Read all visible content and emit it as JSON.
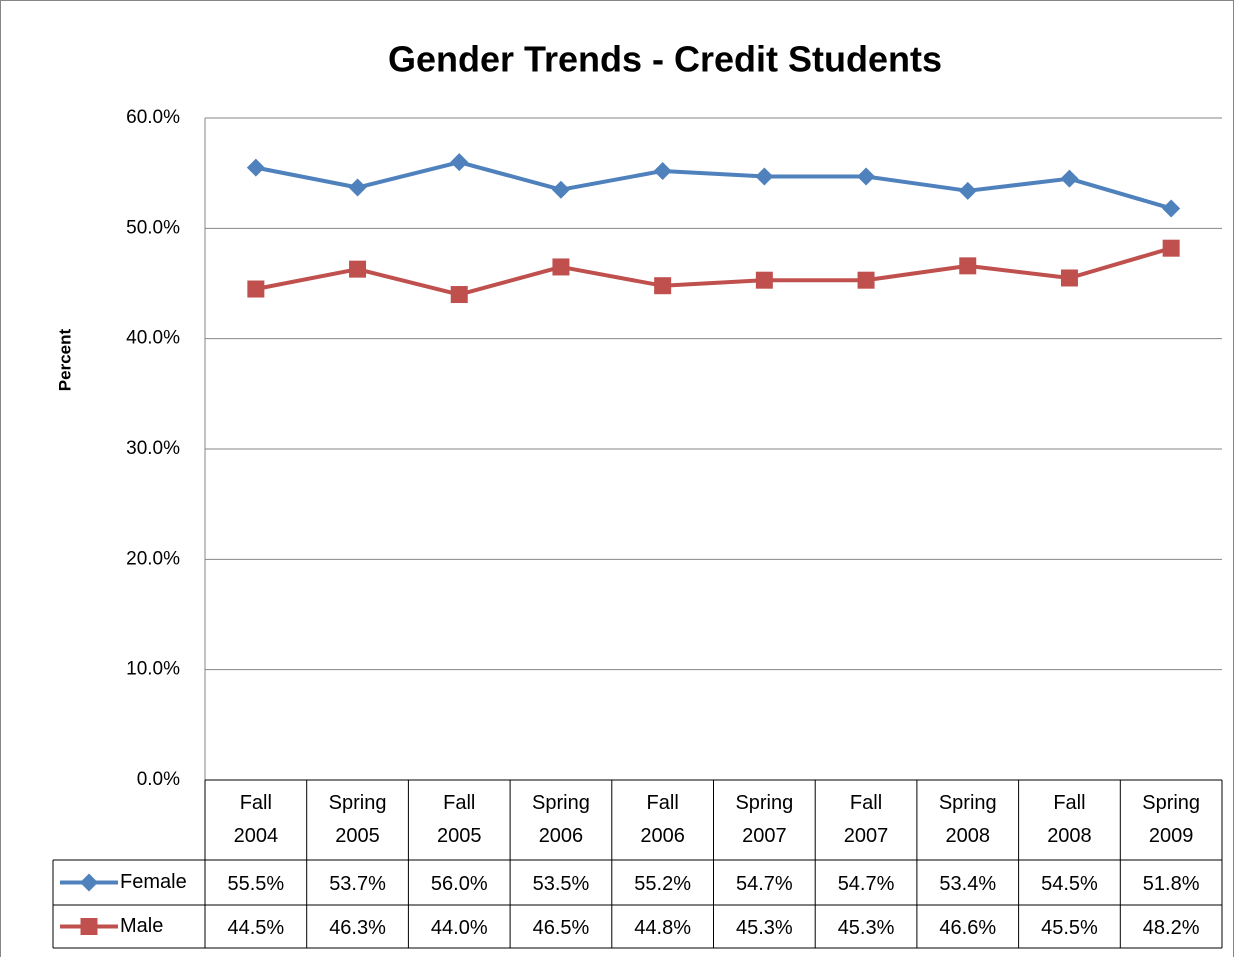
{
  "chart_data": {
    "type": "line",
    "title": "Gender Trends - Credit Students",
    "y_label": "Percent",
    "categories": [
      "Fall 2004",
      "Spring 2005",
      "Fall 2005",
      "Spring 2006",
      "Fall 2006",
      "Spring 2007",
      "Fall 2007",
      "Spring 2008",
      "Fall 2008",
      "Spring 2009"
    ],
    "series": [
      {
        "name": "Female",
        "color": "#4f81bd",
        "marker": "diamond",
        "values": [
          55.5,
          53.7,
          56.0,
          53.5,
          55.2,
          54.7,
          54.7,
          53.4,
          54.5,
          51.8
        ],
        "value_labels": [
          "55.5%",
          "53.7%",
          "56.0%",
          "53.5%",
          "55.2%",
          "54.7%",
          "54.7%",
          "53.4%",
          "54.5%",
          "51.8%"
        ]
      },
      {
        "name": "Male",
        "color": "#c0504d",
        "marker": "square",
        "values": [
          44.5,
          46.3,
          44.0,
          46.5,
          44.8,
          45.3,
          45.3,
          46.6,
          45.5,
          48.2
        ],
        "value_labels": [
          "44.5%",
          "46.3%",
          "44.0%",
          "46.5%",
          "44.8%",
          "45.3%",
          "45.3%",
          "46.6%",
          "45.5%",
          "48.2%"
        ]
      }
    ],
    "ylim": [
      0,
      60
    ],
    "yticks": [
      {
        "value": 0,
        "label": "0.0%"
      },
      {
        "value": 10,
        "label": "10.0%"
      },
      {
        "value": 20,
        "label": "20.0%"
      },
      {
        "value": 30,
        "label": "30.0%"
      },
      {
        "value": 40,
        "label": "40.0%"
      },
      {
        "value": 50,
        "label": "50.0%"
      },
      {
        "value": 60,
        "label": "60.0%"
      }
    ],
    "grid": true,
    "data_table": true
  }
}
